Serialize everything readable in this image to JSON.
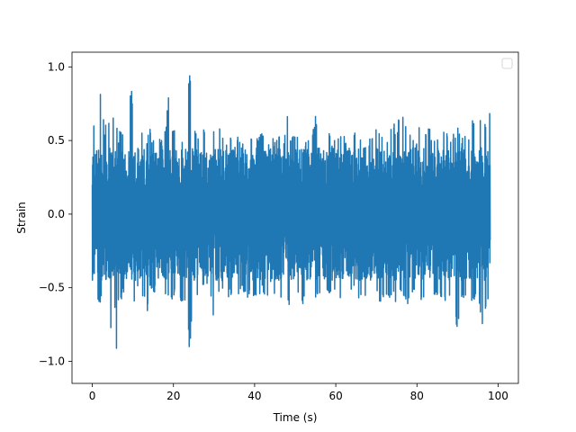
{
  "chart_data": {
    "type": "line",
    "title": "",
    "xlabel": "Time (s)",
    "ylabel": "Strain",
    "xlim": [
      -5,
      105
    ],
    "ylim": [
      -1.15,
      1.1
    ],
    "xticks": [
      0,
      20,
      40,
      60,
      80,
      100
    ],
    "xtick_labels": [
      "0",
      "20",
      "40",
      "60",
      "80",
      "100"
    ],
    "yticks": [
      -1.0,
      -0.5,
      0.0,
      0.5,
      1.0
    ],
    "ytick_labels": [
      "−1.0",
      "−0.5",
      "0.0",
      "0.5",
      "1.0"
    ],
    "grid": false,
    "legend": {
      "placement": "top-right",
      "entries": []
    },
    "series": [
      {
        "color": "#1f77b4",
        "description_range": [
          0,
          100
        ],
        "typical_band": [
          -0.45,
          0.45
        ],
        "x": [
          0,
          0.3,
          1,
          1.5,
          2,
          2.7,
          3,
          3.5,
          4,
          4.4,
          5,
          5.7,
          6,
          6.4,
          7,
          7.5,
          8,
          8.5,
          9,
          9.6,
          10,
          10.7,
          11,
          11.5,
          12,
          12.5,
          13,
          13.5,
          14,
          14.5,
          15,
          16,
          17,
          18,
          19,
          19.5,
          20,
          21,
          22,
          23,
          24,
          25,
          26,
          27,
          28,
          29,
          30,
          31,
          32,
          33,
          34,
          35,
          36,
          37,
          38,
          39,
          40,
          41,
          42,
          43,
          44,
          45,
          46,
          47,
          48,
          49,
          50,
          51,
          52,
          53,
          54,
          55,
          56,
          57,
          58,
          59,
          60,
          61,
          62,
          63,
          64,
          65,
          66,
          67,
          68,
          69,
          70,
          71,
          72,
          73,
          74,
          75,
          76,
          77,
          78,
          79,
          80,
          81,
          82,
          83,
          84,
          85,
          86,
          87,
          88,
          89,
          90,
          91,
          92,
          93,
          94,
          95,
          96,
          97,
          98,
          99,
          100
        ],
        "y_max": [
          0.5,
          0.63,
          0.65,
          0.52,
          0.88,
          0.7,
          0.58,
          0.63,
          0.68,
          0.55,
          0.62,
          0.98,
          0.6,
          0.52,
          0.6,
          0.58,
          0.65,
          0.55,
          0.6,
          1.0,
          0.62,
          0.65,
          0.56,
          0.5,
          0.6,
          0.55,
          0.56,
          0.5,
          0.65,
          0.5,
          0.55,
          0.55,
          0.5,
          0.58,
          0.9,
          0.55,
          0.62,
          0.55,
          0.5,
          0.72,
          0.96,
          0.62,
          0.52,
          0.67,
          0.53,
          0.62,
          0.57,
          0.62,
          0.55,
          0.5,
          0.55,
          0.45,
          0.55,
          0.5,
          0.55,
          0.52,
          0.5,
          0.56,
          0.55,
          0.5,
          0.55,
          0.5,
          0.55,
          0.42,
          0.7,
          0.5,
          0.58,
          0.5,
          0.45,
          0.52,
          0.55,
          0.68,
          0.5,
          0.45,
          0.58,
          0.5,
          0.55,
          0.52,
          0.56,
          0.4,
          0.5,
          0.62,
          0.55,
          0.45,
          0.5,
          0.55,
          0.62,
          0.55,
          0.48,
          0.5,
          0.68,
          0.55,
          0.82,
          0.62,
          0.6,
          0.55,
          0.5,
          0.7,
          0.55,
          0.62,
          0.5,
          0.55,
          0.5,
          0.65,
          0.5,
          0.55,
          0.6,
          0.5,
          0.58,
          0.55,
          0.68,
          0.55,
          0.72,
          0.6,
          0.73
        ],
        "y_min": [
          -0.5,
          -0.55,
          -0.52,
          -0.62,
          -0.6,
          -0.58,
          -0.72,
          -0.75,
          -0.63,
          -0.84,
          -0.7,
          -0.62,
          -1.05,
          -0.6,
          -0.62,
          -0.55,
          -0.6,
          -0.7,
          -0.58,
          -0.86,
          -0.62,
          -0.6,
          -0.55,
          -0.48,
          -0.55,
          -0.58,
          -0.62,
          -0.7,
          -0.5,
          -0.52,
          -0.55,
          -0.52,
          -0.6,
          -0.55,
          -0.58,
          -0.6,
          -0.55,
          -0.58,
          -0.62,
          -0.58,
          -0.97,
          -0.55,
          -0.6,
          -0.52,
          -0.5,
          -0.58,
          -0.72,
          -0.55,
          -0.5,
          -0.58,
          -0.55,
          -0.65,
          -0.55,
          -0.5,
          -0.6,
          -0.55,
          -0.58,
          -0.55,
          -0.52,
          -0.6,
          -0.5,
          -0.55,
          -0.68,
          -0.52,
          -0.55,
          -0.7,
          -0.58,
          -0.55,
          -0.62,
          -0.52,
          -0.48,
          -0.58,
          -0.55,
          -0.6,
          -0.52,
          -0.58,
          -0.55,
          -0.62,
          -0.55,
          -0.6,
          -0.52,
          -0.55,
          -0.58,
          -0.62,
          -0.55,
          -0.6,
          -0.52,
          -0.62,
          -0.55,
          -0.58,
          -0.55,
          -0.62,
          -0.55,
          -0.58,
          -0.62,
          -0.55,
          -0.58,
          -0.6,
          -0.55,
          -0.62,
          -0.58,
          -0.55,
          -0.6,
          -0.62,
          -0.58,
          -0.55,
          -0.84,
          -0.6,
          -0.55,
          -0.62,
          -0.58,
          -0.55,
          -0.8,
          -0.62,
          -0.58
        ]
      }
    ]
  }
}
